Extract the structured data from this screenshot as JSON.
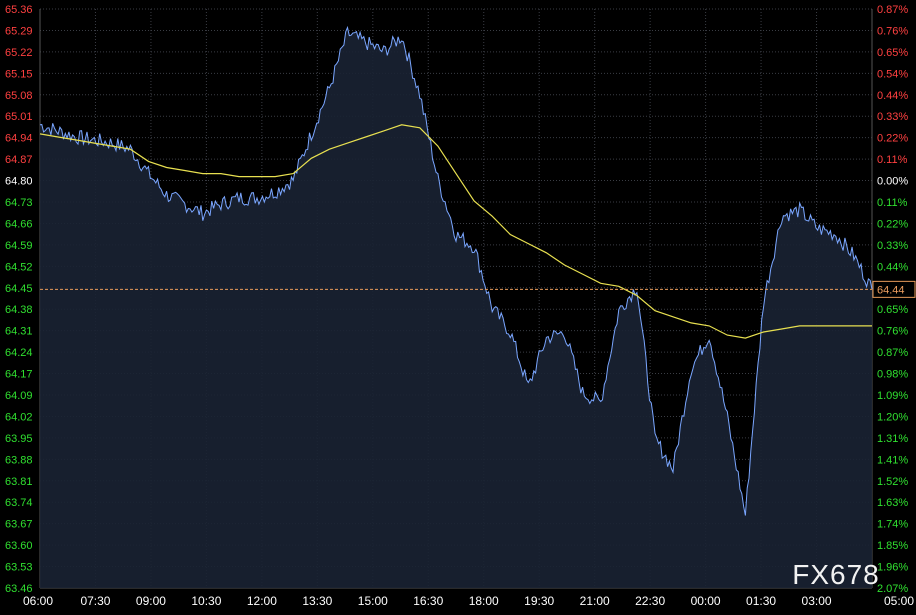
{
  "watermark": "FX678",
  "colors": {
    "background": "#000000",
    "grid": "#3a3d44",
    "price_line": "#7aa6ff",
    "price_fill": "#1a2233",
    "avg_line": "#e8e050",
    "axis_up": "#ff4040",
    "axis_down": "#30e030",
    "axis_neutral": "#ffffff",
    "axis_time": "#ffffff",
    "prev_close_line": "#e69a5a"
  },
  "chart_data": {
    "type": "line",
    "prev_close": 64.8,
    "last_price": 64.44,
    "last_price_label": "64.44",
    "ylim": [
      63.46,
      65.36
    ],
    "y_ticks": [
      "65.36",
      "65.29",
      "65.22",
      "65.15",
      "65.08",
      "65.01",
      "64.94",
      "64.87",
      "64.80",
      "64.73",
      "64.66",
      "64.59",
      "64.52",
      "64.45",
      "64.38",
      "64.31",
      "64.24",
      "64.17",
      "64.09",
      "64.02",
      "63.95",
      "63.88",
      "63.81",
      "63.74",
      "63.67",
      "63.60",
      "63.53",
      "63.46"
    ],
    "pct_ticks": [
      "0.87%",
      "0.76%",
      "0.65%",
      "0.54%",
      "0.44%",
      "0.33%",
      "0.22%",
      "0.11%",
      "0.00%",
      "0.11%",
      "0.22%",
      "0.33%",
      "0.44%",
      "0.54%",
      "0.65%",
      "0.76%",
      "0.87%",
      "0.98%",
      "1.09%",
      "1.20%",
      "1.31%",
      "1.41%",
      "1.52%",
      "1.63%",
      "1.74%",
      "1.85%",
      "1.96%",
      "2.07%"
    ],
    "x_ticks": [
      "06:00",
      "07:30",
      "09:00",
      "10:30",
      "12:00",
      "13:30",
      "15:00",
      "16:30",
      "18:00",
      "19:30",
      "21:00",
      "22:30",
      "00:00",
      "01:30",
      "03:00",
      "05:00"
    ],
    "x": [
      "06:00",
      "06:30",
      "07:00",
      "07:30",
      "08:00",
      "08:30",
      "09:00",
      "09:30",
      "10:00",
      "10:30",
      "11:00",
      "11:30",
      "12:00",
      "12:30",
      "13:00",
      "13:30",
      "14:00",
      "14:30",
      "15:00",
      "15:30",
      "16:00",
      "16:30",
      "17:00",
      "17:30",
      "18:00",
      "18:30",
      "19:00",
      "19:30",
      "20:00",
      "20:30",
      "21:00",
      "21:30",
      "22:00",
      "22:30",
      "23:00",
      "23:30",
      "00:00",
      "00:30",
      "01:00",
      "01:30",
      "02:00",
      "02:30",
      "03:00",
      "03:30",
      "04:00",
      "04:30",
      "05:00"
    ],
    "series": [
      {
        "values": [
          64.98,
          64.96,
          64.94,
          64.93,
          64.92,
          64.9,
          64.82,
          64.75,
          64.72,
          64.69,
          64.72,
          64.74,
          64.74,
          64.76,
          64.8,
          64.95,
          65.1,
          65.28,
          65.25,
          65.22,
          65.27,
          65.08,
          64.8,
          64.62,
          64.58,
          64.38,
          64.3,
          64.12,
          64.28,
          64.3,
          64.1,
          64.07,
          64.37,
          64.45,
          63.95,
          63.85,
          64.18,
          64.29,
          64.02,
          63.7,
          64.4,
          64.68,
          64.7,
          64.64,
          64.62,
          64.55,
          64.44
        ]
      },
      {
        "values": [
          64.95,
          64.94,
          64.93,
          64.92,
          64.91,
          64.9,
          64.86,
          64.84,
          64.83,
          64.82,
          64.82,
          64.81,
          64.81,
          64.81,
          64.82,
          64.87,
          64.9,
          64.92,
          64.94,
          64.96,
          64.98,
          64.97,
          64.91,
          64.82,
          64.73,
          64.68,
          64.62,
          64.59,
          64.56,
          64.52,
          64.49,
          64.46,
          64.45,
          64.42,
          64.37,
          64.35,
          64.33,
          64.32,
          64.29,
          64.28,
          64.3,
          64.31,
          64.32,
          64.32,
          64.32,
          64.32,
          64.32
        ]
      }
    ]
  }
}
